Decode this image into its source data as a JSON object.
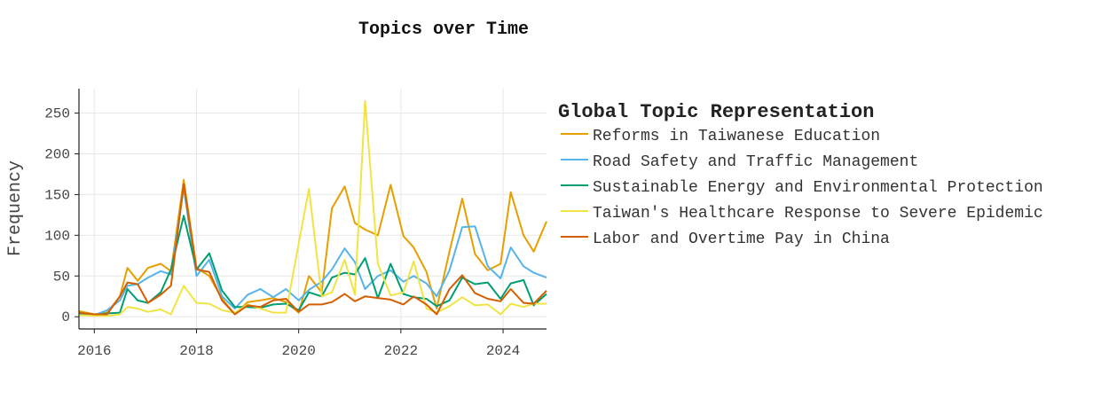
{
  "chart_data": {
    "type": "line",
    "title": "Topics over Time",
    "xlabel": "",
    "ylabel": "Frequency",
    "xlim": [
      2015.7,
      2024.85
    ],
    "ylim": [
      -15,
      280
    ],
    "xticks": [
      2016,
      2018,
      2020,
      2022,
      2024
    ],
    "yticks": [
      0,
      50,
      100,
      150,
      200,
      250
    ],
    "grid": true,
    "legend": {
      "title": "Global Topic Representation",
      "placement": "right"
    },
    "series": [
      {
        "name": "Reforms in Taiwanese Education",
        "color": "#E69F00",
        "x": [
          2015.7,
          2016.0,
          2016.25,
          2016.5,
          2016.65,
          2016.85,
          2017.05,
          2017.3,
          2017.5,
          2017.75,
          2018.0,
          2018.25,
          2018.5,
          2018.75,
          2019.0,
          2019.25,
          2019.5,
          2019.75,
          2020.0,
          2020.2,
          2020.45,
          2020.65,
          2020.9,
          2021.1,
          2021.3,
          2021.55,
          2021.8,
          2022.05,
          2022.25,
          2022.5,
          2022.7,
          2022.95,
          2023.2,
          2023.45,
          2023.7,
          2023.95,
          2024.15,
          2024.4,
          2024.6,
          2024.85
        ],
        "values": [
          7,
          3,
          5,
          25,
          60,
          44,
          60,
          65,
          56,
          168,
          60,
          50,
          22,
          3,
          18,
          20,
          23,
          18,
          5,
          50,
          30,
          133,
          160,
          115,
          107,
          100,
          162,
          99,
          85,
          55,
          10,
          80,
          145,
          77,
          57,
          65,
          153,
          100,
          80,
          117
        ]
      },
      {
        "name": "Road Safety and Traffic Management",
        "color": "#56B4E9",
        "x": [
          2015.7,
          2016.0,
          2016.25,
          2016.5,
          2016.65,
          2016.85,
          2017.05,
          2017.3,
          2017.5,
          2017.75,
          2018.0,
          2018.25,
          2018.5,
          2018.75,
          2019.0,
          2019.25,
          2019.5,
          2019.75,
          2020.0,
          2020.2,
          2020.45,
          2020.65,
          2020.9,
          2021.1,
          2021.3,
          2021.55,
          2021.8,
          2022.05,
          2022.25,
          2022.5,
          2022.7,
          2022.95,
          2023.2,
          2023.45,
          2023.7,
          2023.95,
          2024.15,
          2024.4,
          2024.6,
          2024.85
        ],
        "values": [
          3,
          2,
          8,
          20,
          38,
          40,
          48,
          56,
          52,
          158,
          50,
          70,
          25,
          10,
          27,
          34,
          24,
          34,
          20,
          33,
          43,
          58,
          84,
          67,
          34,
          50,
          57,
          43,
          50,
          41,
          25,
          57,
          110,
          111,
          62,
          47,
          85,
          62,
          54,
          48
        ]
      },
      {
        "name": "Sustainable Energy and Environmental Protection",
        "color": "#009E73",
        "x": [
          2015.7,
          2016.0,
          2016.25,
          2016.5,
          2016.65,
          2016.85,
          2017.05,
          2017.3,
          2017.5,
          2017.75,
          2018.0,
          2018.25,
          2018.5,
          2018.75,
          2019.0,
          2019.25,
          2019.5,
          2019.75,
          2020.0,
          2020.2,
          2020.45,
          2020.65,
          2020.9,
          2021.1,
          2021.3,
          2021.55,
          2021.8,
          2022.05,
          2022.25,
          2022.5,
          2022.7,
          2022.95,
          2023.2,
          2023.45,
          2023.7,
          2023.95,
          2024.15,
          2024.4,
          2024.6,
          2024.85
        ],
        "values": [
          4,
          2,
          4,
          5,
          34,
          20,
          17,
          30,
          58,
          124,
          58,
          78,
          32,
          12,
          12,
          11,
          15,
          16,
          8,
          30,
          25,
          48,
          54,
          52,
          72,
          23,
          65,
          28,
          24,
          22,
          13,
          20,
          48,
          40,
          42,
          22,
          41,
          45,
          14,
          28
        ]
      },
      {
        "name": "Taiwan's Healthcare Response to Severe Epidemic",
        "color": "#F0E442",
        "x": [
          2015.7,
          2016.0,
          2016.25,
          2016.5,
          2016.65,
          2016.85,
          2017.05,
          2017.3,
          2017.5,
          2017.75,
          2018.0,
          2018.25,
          2018.5,
          2018.75,
          2019.0,
          2019.25,
          2019.5,
          2019.75,
          2020.0,
          2020.2,
          2020.45,
          2020.65,
          2020.9,
          2021.1,
          2021.3,
          2021.55,
          2021.8,
          2022.05,
          2022.25,
          2022.5,
          2022.7,
          2022.95,
          2023.2,
          2023.45,
          2023.7,
          2023.95,
          2024.15,
          2024.4,
          2024.6,
          2024.85
        ],
        "values": [
          2,
          1,
          1,
          3,
          12,
          10,
          6,
          9,
          3,
          38,
          17,
          16,
          8,
          5,
          15,
          10,
          5,
          5,
          90,
          157,
          25,
          30,
          70,
          27,
          265,
          65,
          26,
          30,
          68,
          10,
          5,
          13,
          24,
          14,
          15,
          3,
          16,
          12,
          16,
          16
        ]
      },
      {
        "name": "Labor and Overtime Pay in China",
        "color": "#D55E00",
        "x": [
          2015.7,
          2016.0,
          2016.25,
          2016.5,
          2016.65,
          2016.85,
          2017.05,
          2017.3,
          2017.5,
          2017.75,
          2018.0,
          2018.25,
          2018.5,
          2018.75,
          2019.0,
          2019.25,
          2019.5,
          2019.75,
          2020.0,
          2020.2,
          2020.45,
          2020.65,
          2020.9,
          2021.1,
          2021.3,
          2021.55,
          2021.8,
          2022.05,
          2022.25,
          2022.5,
          2022.7,
          2022.95,
          2023.2,
          2023.45,
          2023.7,
          2023.95,
          2024.15,
          2024.4,
          2024.6,
          2024.85
        ],
        "values": [
          5,
          3,
          3,
          25,
          42,
          40,
          17,
          27,
          38,
          163,
          58,
          55,
          20,
          3,
          14,
          12,
          20,
          22,
          6,
          15,
          15,
          18,
          28,
          19,
          25,
          23,
          21,
          15,
          25,
          15,
          3,
          34,
          51,
          29,
          22,
          19,
          34,
          17,
          16,
          32
        ]
      }
    ]
  }
}
